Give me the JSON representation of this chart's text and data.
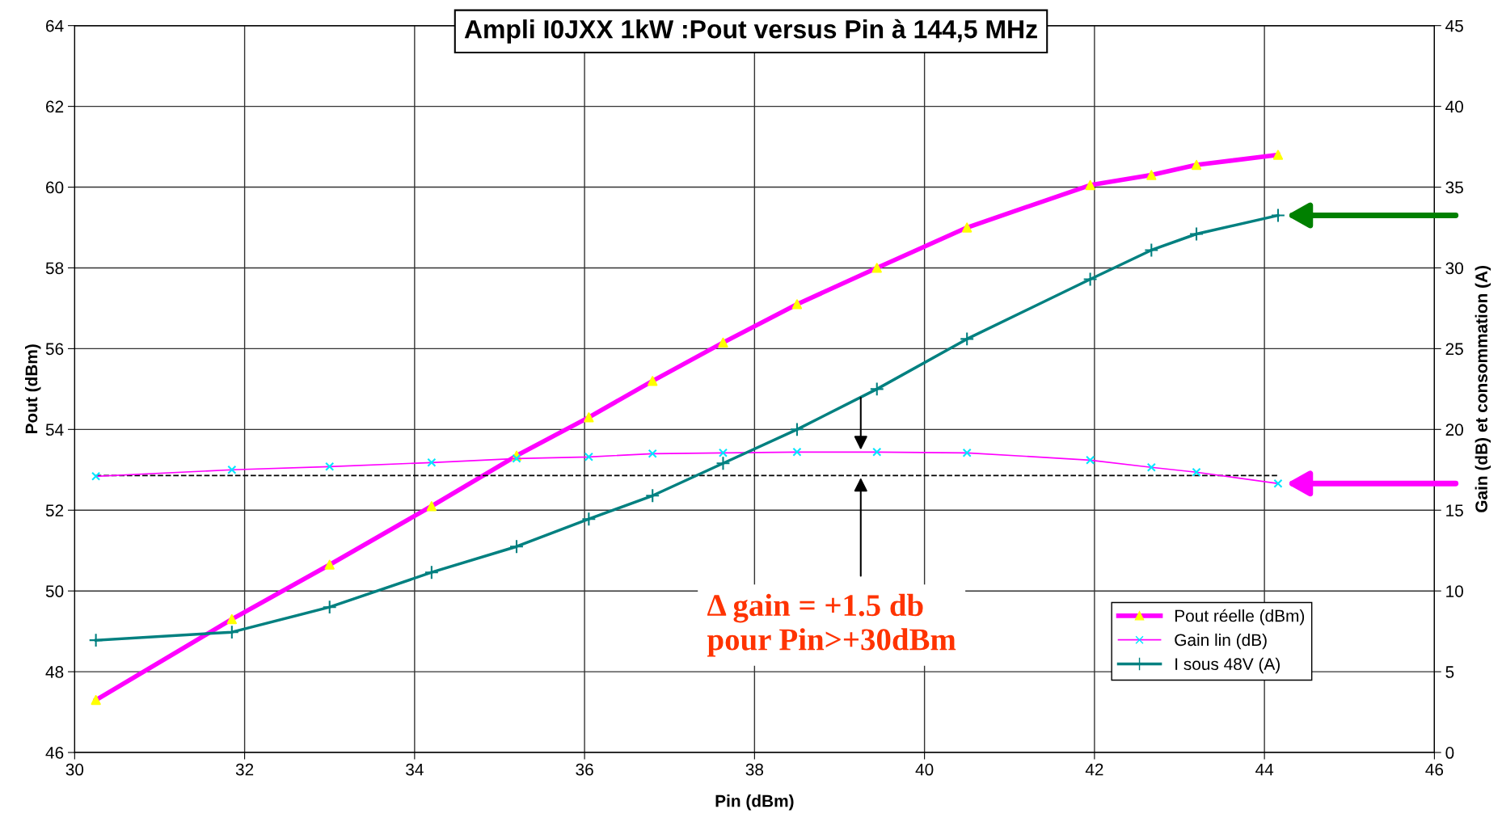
{
  "chart_data": {
    "type": "line",
    "title": "Ampli I0JXX 1kW :Pout versus Pin à 144,5 MHz",
    "xlabel": "Pin (dBm)",
    "ylabel": "Pout (dBm)",
    "y2label": "Gain (dB) et consommation (A)",
    "xlim": [
      30,
      46
    ],
    "xticks": [
      30,
      32,
      34,
      36,
      38,
      40,
      42,
      44,
      46
    ],
    "ylim": [
      46,
      64
    ],
    "yticks": [
      46,
      48,
      50,
      52,
      54,
      56,
      58,
      60,
      62,
      64
    ],
    "y2lim": [
      0,
      45
    ],
    "y2ticks": [
      0,
      5,
      10,
      15,
      20,
      25,
      30,
      35,
      40,
      45
    ],
    "grid": true,
    "legend": "bottom right",
    "x": [
      30.25,
      31.85,
      33.0,
      34.2,
      35.2,
      36.05,
      36.8,
      37.63,
      38.5,
      39.44,
      40.5,
      41.95,
      42.67,
      43.2,
      44.16
    ],
    "series": [
      {
        "name": "Pout réelle (dBm)",
        "color": "#ff00ff",
        "marker": "triangle",
        "colors": [
          "#ffff00",
          "#ffff00",
          "#ffff00",
          "#ffff00",
          "#ffff00",
          "#ffff00",
          "#ffff00",
          "#ffff00",
          "#ffff00",
          "#ffff00",
          "#ffff00",
          "#ffff00",
          "#ffff00",
          "#ffff00",
          "#ffff00"
        ],
        "values": [
          47.3,
          49.3,
          50.65,
          52.1,
          53.35,
          54.3,
          55.2,
          56.15,
          57.1,
          58.0,
          59.0,
          60.05,
          60.3,
          60.55,
          60.8
        ]
      },
      {
        "name": "Gain lin (dB)",
        "color": "#ff00ff",
        "marker": "cross",
        "axis": "y2",
        "colors": [
          "#00e5ff",
          "#00e5ff",
          "#00e5ff",
          "#00e5ff",
          "#00e5ff",
          "#00e5ff",
          "#00e5ff",
          "#00e5ff",
          "#00e5ff",
          "#00e5ff",
          "#00e5ff",
          "#00e5ff",
          "#00e5ff",
          "#00e5ff",
          "#00e5ff"
        ],
        "values": [
          17.1,
          17.5,
          17.7,
          17.95,
          18.2,
          18.3,
          18.5,
          18.55,
          18.6,
          18.6,
          18.55,
          18.1,
          17.65,
          17.35,
          16.65
        ]
      },
      {
        "name": "I sous 48V (A)",
        "color": "#008080",
        "marker": "plus",
        "axis": "y2",
        "colors": [
          "#008080",
          "#008080",
          "#008080",
          "#008080",
          "#008080",
          "#008080",
          "#008080",
          "#008080",
          "#008080",
          "#008080",
          "#008080",
          "#008080",
          "#008080",
          "#008080",
          "#008080"
        ],
        "values": [
          6.95,
          7.45,
          9.0,
          11.15,
          12.75,
          14.45,
          15.9,
          17.9,
          20.0,
          22.5,
          25.6,
          29.3,
          31.1,
          32.1,
          33.25
        ]
      }
    ],
    "ref_lines": [
      {
        "axis": "y2",
        "value": 17.15,
        "color": "#000000",
        "line_style": "dashed"
      }
    ],
    "annotations": [
      "Δ gain = +1.5 db\npour Pin>+30dBm"
    ]
  }
}
